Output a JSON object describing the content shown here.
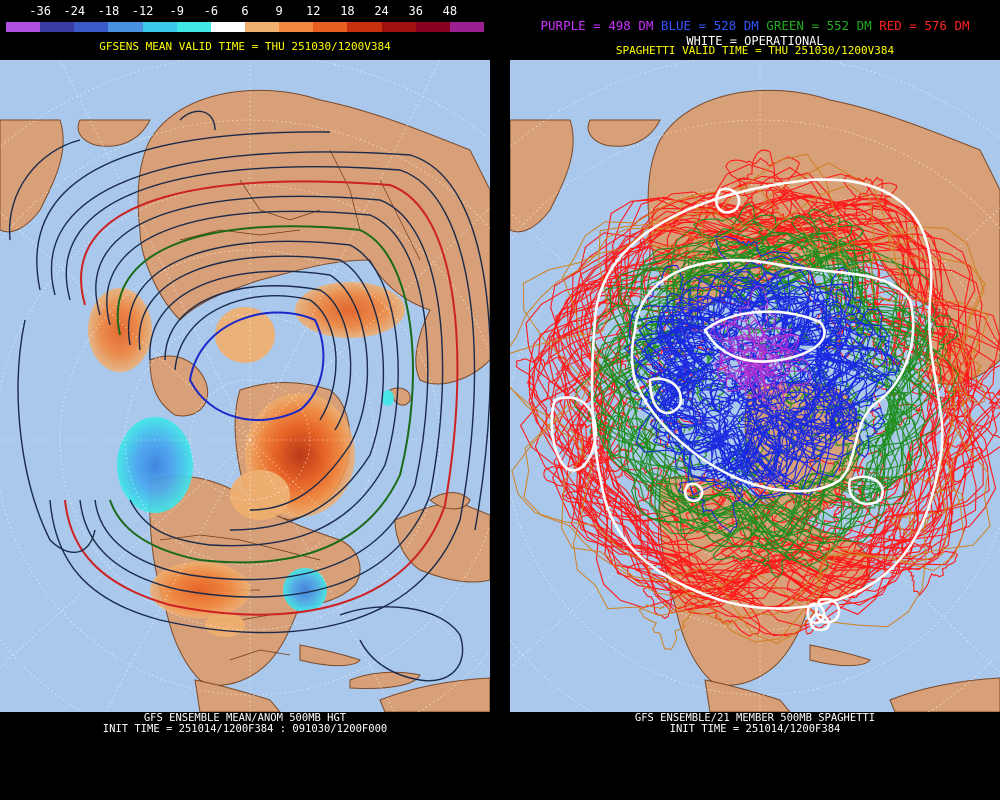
{
  "left_panel": {
    "colorbar": {
      "labels": [
        "-36",
        "-24",
        "-18",
        "-12",
        "-9",
        "-6",
        "6",
        "9",
        "12",
        "18",
        "24",
        "36",
        "48"
      ],
      "colors": [
        "#b050e0",
        "#3a3aa0",
        "#3a5ac8",
        "#4a90e0",
        "#3ac8e8",
        "#40e8e8",
        "#ffffff",
        "#f0b070",
        "#f08840",
        "#e86020",
        "#c83010",
        "#a01010",
        "#8a0020",
        "#9a2090"
      ]
    },
    "title": "GFSENS MEAN VALID TIME = THU 251030/1200V384",
    "caption_line1": "GFS ENSEMBLE MEAN/ANOM 500MB HGT",
    "caption_line2": "INIT TIME = 251014/1200F384 : 091030/1200F000"
  },
  "right_panel": {
    "legend": {
      "purple": "PURPLE = 498 DM",
      "blue": "BLUE = 528 DM",
      "green": "GREEN = 552 DM",
      "red": "RED = 576 DM"
    },
    "white_line": "WHITE = OPERATIONAL",
    "title": "SPAGHETTI VALID TIME = THU 251030/1200V384",
    "caption_line1": "GFS ENSEMBLE/21 MEMBER 500MB SPAGHETTI",
    "caption_line2": "INIT TIME = 251014/1200F384"
  },
  "colors": {
    "ocean": "#aac8ec",
    "land": "#d8a078",
    "border": "#6b3a1a",
    "grid": "#ffffff",
    "contour": "#1a2a4a"
  }
}
